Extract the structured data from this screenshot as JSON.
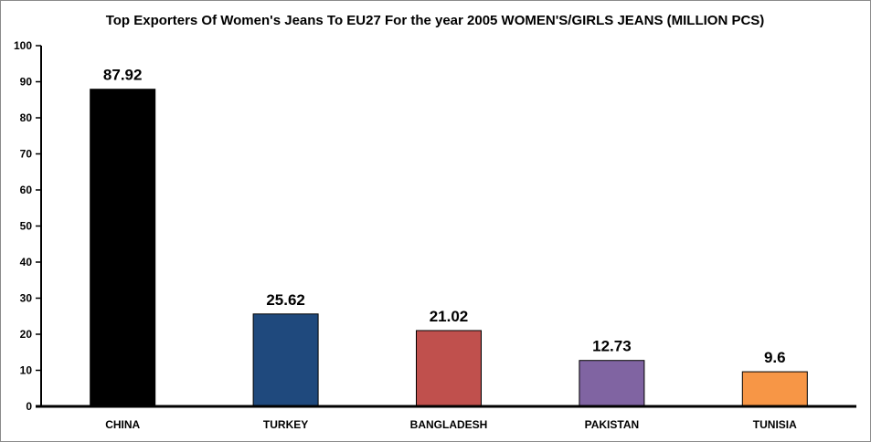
{
  "chart_data": {
    "type": "bar",
    "title": "Top Exporters Of Women's Jeans To EU27 For the year 2005 WOMEN'S/GIRLS  JEANS (MILLION PCS)",
    "categories": [
      "CHINA",
      "TURKEY",
      "BANGLADESH",
      "PAKISTAN",
      "TUNISIA"
    ],
    "values": [
      87.92,
      25.62,
      21.02,
      12.73,
      9.6
    ],
    "value_labels": [
      "87.92",
      "25.62",
      "21.02",
      "12.73",
      "9.6"
    ],
    "colors": [
      "#000000",
      "#1f497d",
      "#c0504d",
      "#8064a2",
      "#f79646"
    ],
    "ylim": [
      0,
      100
    ],
    "yticks": [
      0,
      10,
      20,
      30,
      40,
      50,
      60,
      70,
      80,
      90,
      100
    ],
    "xlabel": "",
    "ylabel": "",
    "grid": false,
    "legend": "none"
  }
}
